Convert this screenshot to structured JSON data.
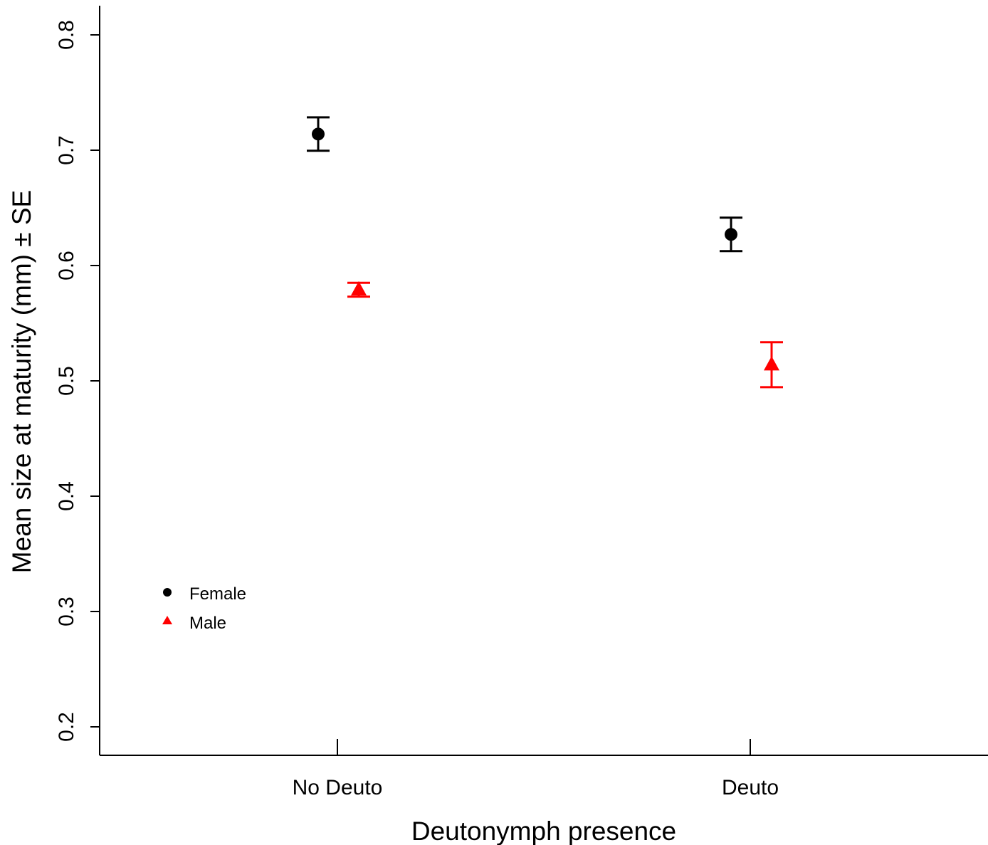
{
  "chart_data": {
    "type": "scatter",
    "title": "",
    "xlabel": "Deutonymph presence",
    "ylabel": "Mean size at maturity (mm) ± SE",
    "categories": [
      "No Deuto",
      "Deuto"
    ],
    "ylim": [
      0.2,
      0.8
    ],
    "yticks": [
      "0.2",
      "0.3",
      "0.4",
      "0.5",
      "0.6",
      "0.7",
      "0.8"
    ],
    "grid": false,
    "legend_position": "bottom-left",
    "series": [
      {
        "name": "Female",
        "marker": "circle",
        "color": "#000000",
        "values": [
          0.714,
          0.627
        ],
        "se": [
          0.0145,
          0.0145
        ]
      },
      {
        "name": "Male",
        "marker": "triangle",
        "color": "#ff0000",
        "values": [
          0.579,
          0.514
        ],
        "se": [
          0.006,
          0.0195
        ]
      }
    ]
  }
}
